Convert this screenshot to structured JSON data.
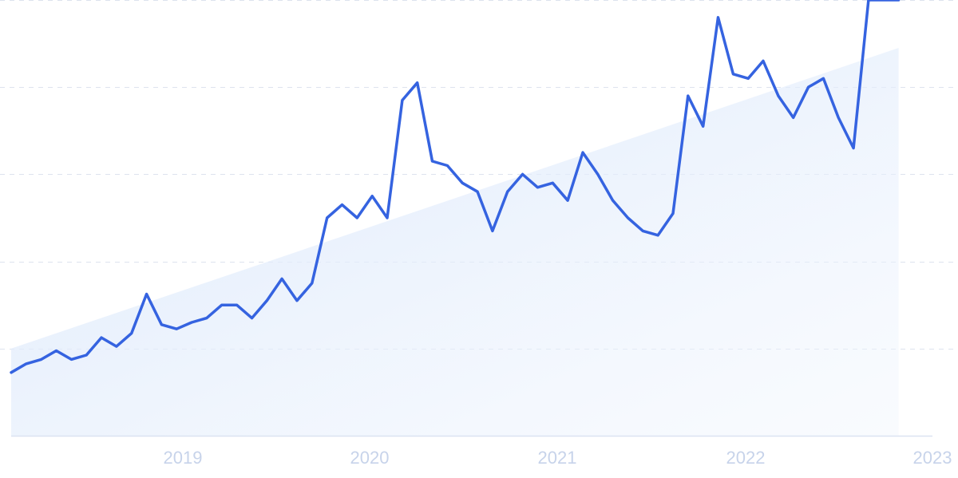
{
  "chart_data": {
    "type": "line",
    "title": "",
    "xlabel": "",
    "ylabel": "",
    "x_ticks": [
      "2019",
      "2020",
      "2021",
      "2022",
      "2023"
    ],
    "grid": true,
    "legend": "none",
    "ylim": [
      0,
      100
    ],
    "xlim": [
      2018.1,
      2023.0
    ],
    "series": [
      {
        "line_color": "#3563e0",
        "points": [
          [
            2018.1,
            14.5
          ],
          [
            2018.18,
            16.5
          ],
          [
            2018.26,
            17.5
          ],
          [
            2018.34,
            19.5
          ],
          [
            2018.42,
            17.5
          ],
          [
            2018.5,
            18.5
          ],
          [
            2018.58,
            22.5
          ],
          [
            2018.66,
            20.5
          ],
          [
            2018.74,
            23.5
          ],
          [
            2018.82,
            32.5
          ],
          [
            2018.9,
            25.5
          ],
          [
            2018.98,
            24.5
          ],
          [
            2019.06,
            26.0
          ],
          [
            2019.14,
            27.0
          ],
          [
            2019.22,
            30.0
          ],
          [
            2019.3,
            30.0
          ],
          [
            2019.38,
            27.0
          ],
          [
            2019.46,
            31.0
          ],
          [
            2019.54,
            36.0
          ],
          [
            2019.62,
            31.0
          ],
          [
            2019.7,
            35.0
          ],
          [
            2019.78,
            50.0
          ],
          [
            2019.86,
            53.0
          ],
          [
            2019.94,
            50.0
          ],
          [
            2020.02,
            55.0
          ],
          [
            2020.1,
            50.0
          ],
          [
            2020.18,
            77.0
          ],
          [
            2020.26,
            81.0
          ],
          [
            2020.34,
            63.0
          ],
          [
            2020.42,
            62.0
          ],
          [
            2020.5,
            58.0
          ],
          [
            2020.58,
            56.0
          ],
          [
            2020.66,
            47.0
          ],
          [
            2020.74,
            56.0
          ],
          [
            2020.82,
            60.0
          ],
          [
            2020.9,
            57.0
          ],
          [
            2020.98,
            58.0
          ],
          [
            2021.06,
            54.0
          ],
          [
            2021.14,
            65.0
          ],
          [
            2021.22,
            60.0
          ],
          [
            2021.3,
            54.0
          ],
          [
            2021.38,
            50.0
          ],
          [
            2021.46,
            47.0
          ],
          [
            2021.54,
            46.0
          ],
          [
            2021.62,
            51.0
          ],
          [
            2021.7,
            78.0
          ],
          [
            2021.78,
            71.0
          ],
          [
            2021.86,
            96.0
          ],
          [
            2021.94,
            83.0
          ],
          [
            2022.02,
            82.0
          ],
          [
            2022.1,
            86.0
          ],
          [
            2022.18,
            78.0
          ],
          [
            2022.26,
            73.0
          ],
          [
            2022.34,
            80.0
          ],
          [
            2022.42,
            82.0
          ],
          [
            2022.5,
            73.0
          ],
          [
            2022.58,
            66.0
          ],
          [
            2022.66,
            100.0
          ],
          [
            2022.74,
            100.0
          ],
          [
            2022.82,
            100.0
          ]
        ]
      }
    ],
    "trend": {
      "fill_color": "#dbe8fb",
      "start": [
        2018.1,
        20.0
      ],
      "end": [
        2022.82,
        89.0
      ]
    }
  }
}
